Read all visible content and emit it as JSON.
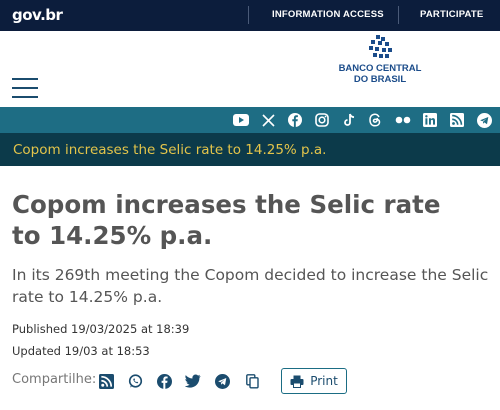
{
  "govbar": {
    "logo": "gov.br",
    "info_access": "INFORMATION ACCESS",
    "participate": "PARTICIPATE"
  },
  "header": {
    "org_line1": "BANCO CENTRAL",
    "org_line2": "DO BRASIL"
  },
  "social": [
    "youtube-icon",
    "x-icon",
    "facebook-icon",
    "instagram-icon",
    "tiktok-icon",
    "threads-icon",
    "flickr-icon",
    "linkedin-icon",
    "rss-icon",
    "telegram-icon"
  ],
  "breadcrumb": "Copom increases the Selic rate to 14.25% p.a.",
  "article": {
    "title": "Copom increases the Selic rate to 14.25% p.a.",
    "subtitle": "In its 269th meeting the Copom decided to increase the Selic rate to 14.25% p.a.",
    "published": "Published 19/03/2025 at 18:39",
    "updated": "Updated 19/03 at 18:53"
  },
  "share": {
    "label": "Compartilhe:",
    "icons": [
      "rss-icon",
      "whatsapp-icon",
      "facebook-icon",
      "twitter-icon",
      "telegram-icon",
      "copy-link-icon"
    ],
    "print_label": "Print"
  },
  "colors": {
    "govbar_bg": "#0c1d3c",
    "social_bg": "#1e6d84",
    "crumb_bg": "#0c3a4a",
    "crumb_text": "#e3c44a",
    "brand_blue": "#1b4c8a"
  }
}
